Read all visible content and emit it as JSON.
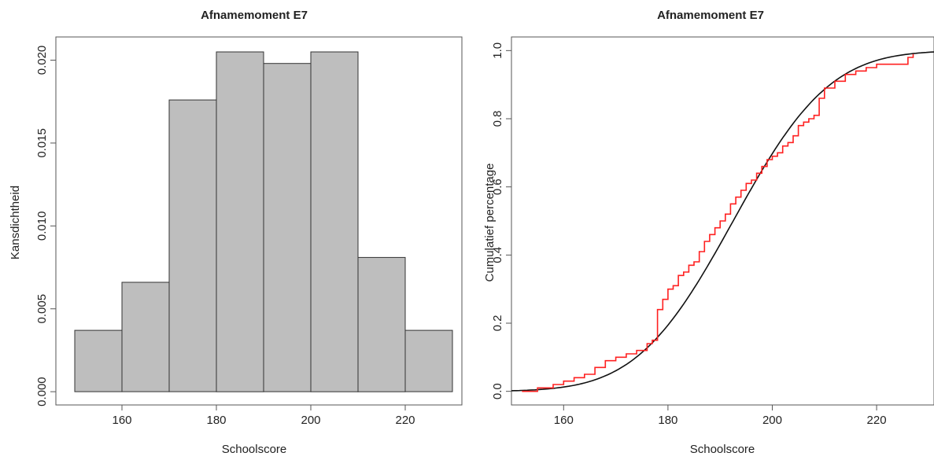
{
  "colors": {
    "bar_fill": "#bebebe",
    "bar_stroke": "#333333",
    "empirical_line": "#ff2020",
    "fitted_line": "#111111",
    "axis": "#555555"
  },
  "chart_data": [
    {
      "type": "bar",
      "title": "Afnamemoment E7",
      "xlabel": "Schoolscore",
      "ylabel": "Kansdichtheid",
      "bin_edges": [
        150,
        160,
        170,
        180,
        190,
        200,
        210,
        220,
        230
      ],
      "values": [
        0.0037,
        0.0066,
        0.0176,
        0.0205,
        0.0198,
        0.0205,
        0.0081,
        0.0037
      ],
      "xlim": [
        146,
        232
      ],
      "ylim": [
        -0.0008,
        0.0214
      ],
      "xticks": [
        160,
        180,
        200,
        220
      ],
      "xtick_labels": [
        "160",
        "180",
        "200",
        "220"
      ],
      "yticks": [
        0,
        0.005,
        0.01,
        0.015,
        0.02
      ],
      "ytick_labels": [
        "0.000",
        "0.005",
        "0.010",
        "0.015",
        "0.020"
      ]
    },
    {
      "type": "line",
      "title": "Afnamemoment E7",
      "xlabel": "Schoolscore",
      "ylabel": "Cumulatief percentage",
      "xlim": [
        150,
        231
      ],
      "ylim": [
        -0.04,
        1.04
      ],
      "xticks": [
        160,
        180,
        200,
        220
      ],
      "xtick_labels": [
        "160",
        "180",
        "200",
        "220"
      ],
      "yticks": [
        0,
        0.2,
        0.4,
        0.6,
        0.8,
        1.0
      ],
      "ytick_labels": [
        "0.0",
        "0.2",
        "0.4",
        "0.6",
        "0.8",
        "1.0"
      ],
      "series": [
        {
          "kind": "empirical-step",
          "color": "#ff2020",
          "x": [
            152,
            155,
            158,
            160,
            162,
            164,
            166,
            168,
            170,
            172,
            174,
            176,
            177,
            178,
            179,
            180,
            181,
            182,
            183,
            184,
            185,
            186,
            187,
            188,
            189,
            190,
            191,
            192,
            193,
            194,
            195,
            196,
            197,
            198,
            199,
            200,
            201,
            202,
            203,
            204,
            205,
            206,
            207,
            208,
            209,
            210,
            212,
            214,
            216,
            218,
            220,
            222,
            224,
            226,
            227
          ],
          "y": [
            0.0,
            0.01,
            0.02,
            0.03,
            0.04,
            0.05,
            0.07,
            0.09,
            0.1,
            0.11,
            0.12,
            0.14,
            0.15,
            0.24,
            0.27,
            0.3,
            0.31,
            0.34,
            0.35,
            0.37,
            0.38,
            0.41,
            0.44,
            0.46,
            0.48,
            0.5,
            0.52,
            0.55,
            0.57,
            0.59,
            0.61,
            0.62,
            0.64,
            0.66,
            0.68,
            0.69,
            0.7,
            0.72,
            0.73,
            0.75,
            0.78,
            0.79,
            0.8,
            0.81,
            0.86,
            0.89,
            0.91,
            0.93,
            0.94,
            0.95,
            0.96,
            0.96,
            0.96,
            0.98,
            0.99
          ]
        },
        {
          "kind": "fitted-normal-cdf",
          "color": "#111111",
          "mean": 192.5,
          "sd": 14.5
        }
      ]
    }
  ]
}
